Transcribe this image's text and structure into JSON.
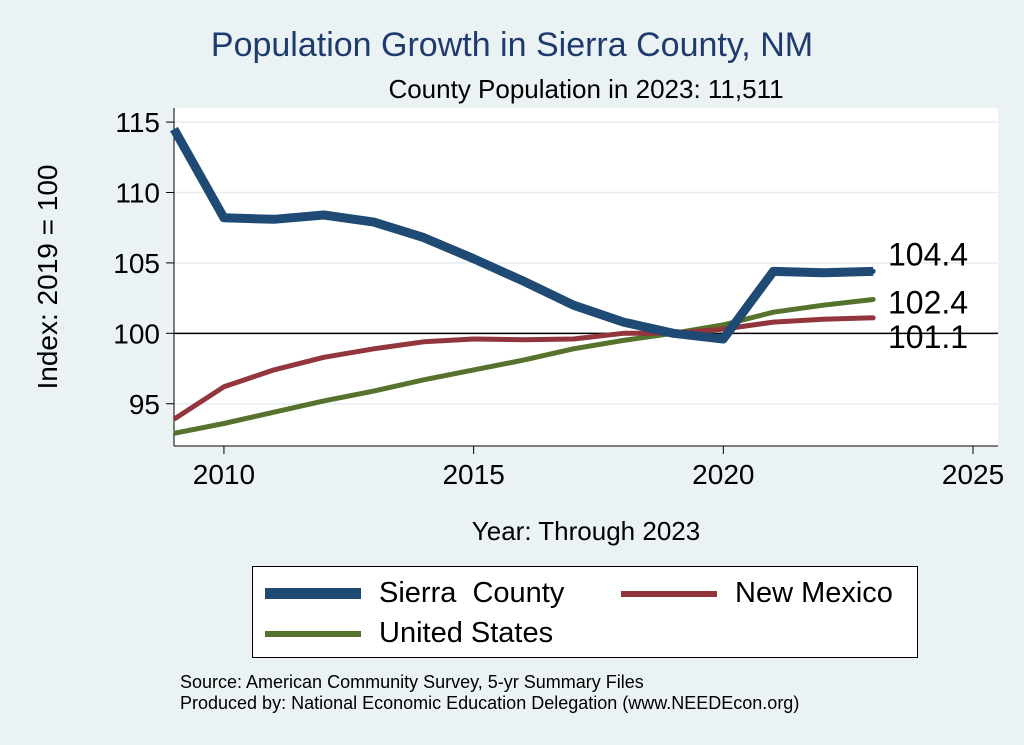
{
  "chart_data": {
    "type": "line",
    "title": "Population Growth in Sierra County, NM",
    "subtitle": "County Population in 2023: 11,511",
    "xlabel": "Year: Through 2023",
    "ylabel": "Index: 2019 = 100",
    "xlim": [
      2009,
      2025.5
    ],
    "ylim": [
      92,
      116
    ],
    "xticks": [
      2010,
      2015,
      2020,
      2025
    ],
    "yticks": [
      95,
      100,
      105,
      110,
      115
    ],
    "reference_line": 100,
    "grid": true,
    "x": [
      2009,
      2010,
      2011,
      2012,
      2013,
      2014,
      2015,
      2016,
      2017,
      2018,
      2019,
      2020,
      2021,
      2022,
      2023
    ],
    "series": [
      {
        "name": "Sierra  County",
        "color": "#1e4a73",
        "values": [
          114.5,
          108.2,
          108.1,
          108.4,
          107.9,
          106.8,
          105.3,
          103.7,
          102.0,
          100.8,
          100.0,
          99.6,
          104.4,
          104.3,
          104.4
        ],
        "end_label": "104.4"
      },
      {
        "name": "New Mexico",
        "color": "#93353c",
        "values": [
          93.9,
          96.2,
          97.4,
          98.3,
          98.9,
          99.4,
          99.6,
          99.55,
          99.6,
          100.0,
          100.0,
          100.3,
          100.8,
          101.0,
          101.1
        ],
        "end_label": "101.1"
      },
      {
        "name": "United States",
        "color": "#55732c",
        "values": [
          92.9,
          93.6,
          94.4,
          95.2,
          95.9,
          96.7,
          97.4,
          98.1,
          98.9,
          99.5,
          100.0,
          100.6,
          101.5,
          102.0,
          102.4
        ],
        "end_label": "102.4"
      }
    ],
    "legend": [
      "Sierra  County",
      "New Mexico",
      "United States"
    ]
  },
  "footer": {
    "source": "Source: American Community Survey, 5-yr Summary Files",
    "produced": "Produced by: National Economic Education Delegation (www.NEEDEcon.org)"
  }
}
